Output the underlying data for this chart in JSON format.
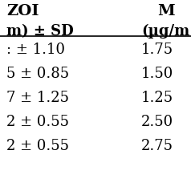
{
  "col1_header": "ZOI",
  "col2_header": "M",
  "col1_subheader": "m) ± SD",
  "col2_subheader": "(µg/m",
  "rows": [
    [
      "± 1.10",
      "1.75"
    ],
    [
      "± 0.85",
      "1.50"
    ],
    [
      "± 1.25",
      "1.25"
    ],
    [
      "± 0.55",
      "2.50"
    ],
    [
      "± 0.55",
      "2.75"
    ]
  ],
  "col1_prefix": [
    ":",
    "5",
    "7",
    "2",
    "2"
  ],
  "background": "#ffffff",
  "text_color": "#000000",
  "header_fontsize": 14,
  "subheader_fontsize": 13,
  "data_fontsize": 13,
  "line_color": "#000000"
}
